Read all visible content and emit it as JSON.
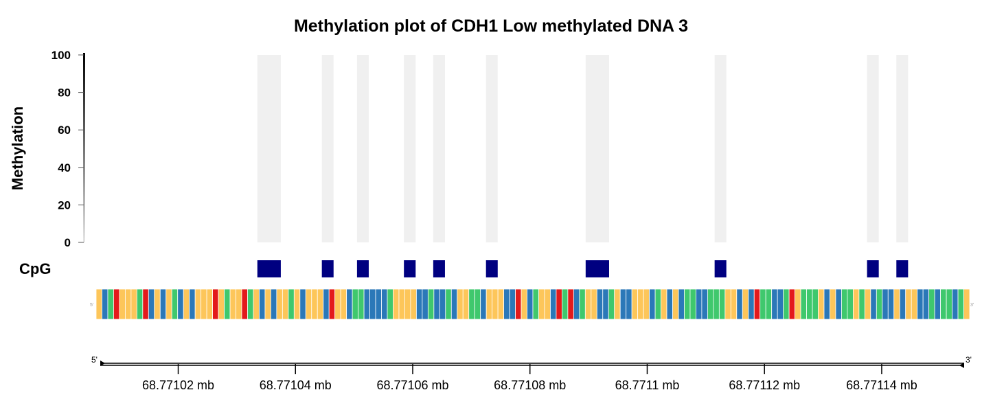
{
  "chart_data": {
    "type": "bar",
    "title": "Methylation plot of CDH1 Low methylated DNA 3",
    "ylabel": "Methylation",
    "ylim": [
      0,
      100
    ],
    "yticks": [
      "0",
      "20",
      "40",
      "60",
      "80",
      "100"
    ],
    "track_label": "CpG",
    "x_unit": "mb",
    "xlim": [
      68.771006,
      68.771155
    ],
    "xticks": [
      {
        "value": 68.77102,
        "label": "68.77102 mb"
      },
      {
        "value": 68.77104,
        "label": "68.77104 mb"
      },
      {
        "value": 68.77106,
        "label": "68.77106 mb"
      },
      {
        "value": 68.77108,
        "label": "68.77108 mb"
      },
      {
        "value": 68.7711,
        "label": "68.7711 mb"
      },
      {
        "value": 68.77112,
        "label": "68.77112 mb"
      },
      {
        "value": 68.77114,
        "label": "68.77114 mb"
      }
    ],
    "strand_left": "5'",
    "strand_right": "3'",
    "cpg_sites": [
      {
        "start": 68.7710335,
        "end": 68.7710375,
        "methylation": 0
      },
      {
        "start": 68.7710445,
        "end": 68.7710465,
        "methylation": 0
      },
      {
        "start": 68.7710505,
        "end": 68.7710525,
        "methylation": 0
      },
      {
        "start": 68.7710585,
        "end": 68.7710605,
        "methylation": 0
      },
      {
        "start": 68.7710635,
        "end": 68.7710655,
        "methylation": 0
      },
      {
        "start": 68.7710725,
        "end": 68.7710745,
        "methylation": 0
      },
      {
        "start": 68.7710895,
        "end": 68.7710935,
        "methylation": 0
      },
      {
        "start": 68.7711115,
        "end": 68.7711135,
        "methylation": 0
      },
      {
        "start": 68.7711375,
        "end": 68.7711395,
        "methylation": 0
      },
      {
        "start": 68.7711425,
        "end": 68.7711445,
        "methylation": 0
      }
    ],
    "sequence": "TCGATTTGACTCTGCTCTTTATGTTAGTCTCTTGTCTTTCATTCGGCCCCGTTTTCCGCCGCTTGGCTTTCCATCGTTCAGACGTTCCGTCCTTTCGTCTCGGCCGGGTTCTCAGGCCGATGGGTCTCGGTGTCGCCTCTTCCGCGGCGT"
  },
  "colors": {
    "A": "#e31a1c",
    "C": "#2b78b8",
    "G": "#3fc86d",
    "T": "#fdc65a",
    "cpg": "#000080",
    "highlight": "#f0f0f0"
  }
}
